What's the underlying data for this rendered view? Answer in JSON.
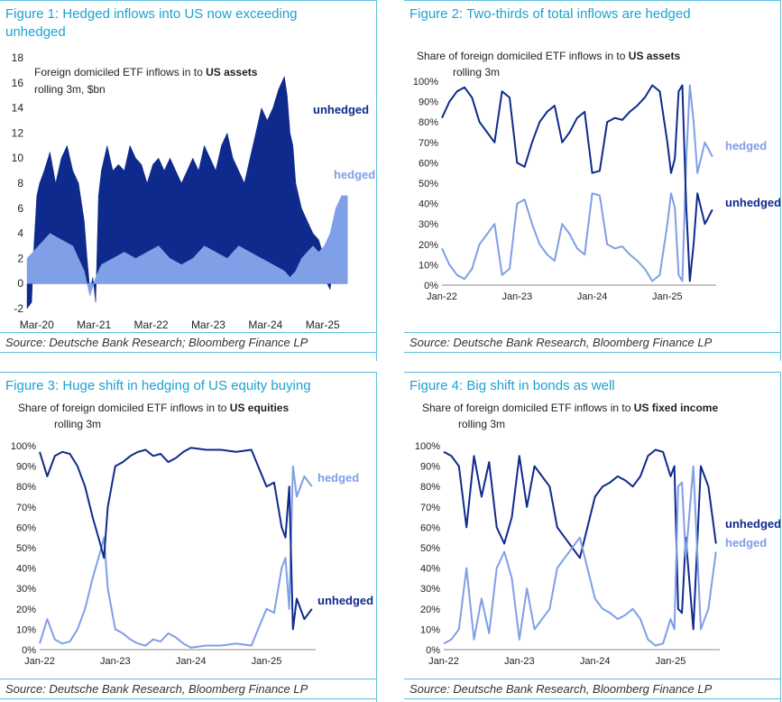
{
  "colors": {
    "title": "#1aa3d1",
    "unhedged": "#0e2a8c",
    "hedged": "#7f9fe6",
    "rule": "#5fc0e0"
  },
  "chart_data": [
    {
      "id": "fig1",
      "type": "area",
      "title": "Figure 1: Hedged inflows into US now exceeding unhedged",
      "annotation": {
        "line1_prefix": "Foreign domiciled ETF inflows in to ",
        "line1_bold": "US assets",
        "line2": "rolling 3m, $bn"
      },
      "source": "Source: Deutsche Bank Research; Bloomberg Finance LP",
      "ylim": [
        -2,
        18
      ],
      "yticks": [
        "18",
        "16",
        "14",
        "12",
        "10",
        "8",
        "6",
        "4",
        "2",
        "0",
        "-2"
      ],
      "xlim": [
        2020.0,
        2025.6
      ],
      "xticks": [
        {
          "label": "Mar-20",
          "x": 2020.17
        },
        {
          "label": "Mar-21",
          "x": 2021.17
        },
        {
          "label": "Mar-22",
          "x": 2022.17
        },
        {
          "label": "Mar-23",
          "x": 2023.17
        },
        {
          "label": "Mar-24",
          "x": 2024.17
        },
        {
          "label": "Mar-25",
          "x": 2025.17
        }
      ],
      "series": [
        {
          "name": "unhedged",
          "label": "unhedged",
          "x": [
            2020.0,
            2020.08,
            2020.12,
            2020.17,
            2020.22,
            2020.3,
            2020.4,
            2020.5,
            2020.6,
            2020.7,
            2020.8,
            2020.9,
            2021.0,
            2021.05,
            2021.1,
            2021.15,
            2021.2,
            2021.25,
            2021.3,
            2021.4,
            2021.5,
            2021.6,
            2021.7,
            2021.8,
            2021.9,
            2022.0,
            2022.1,
            2022.2,
            2022.3,
            2022.4,
            2022.5,
            2022.6,
            2022.7,
            2022.8,
            2022.9,
            2023.0,
            2023.1,
            2023.2,
            2023.3,
            2023.4,
            2023.5,
            2023.6,
            2023.7,
            2023.8,
            2023.9,
            2024.0,
            2024.1,
            2024.2,
            2024.3,
            2024.4,
            2024.5,
            2024.55,
            2024.6,
            2024.65,
            2024.7,
            2024.8,
            2024.9,
            2025.0,
            2025.1,
            2025.2,
            2025.25,
            2025.3,
            2025.4,
            2025.5,
            2025.6
          ],
          "y": [
            -2,
            -1.5,
            3,
            7,
            8,
            9,
            10.5,
            8,
            10,
            11,
            9,
            8,
            5,
            2,
            -0.5,
            0.5,
            -1.5,
            7,
            9,
            11,
            9,
            9.5,
            9,
            11,
            10,
            9.5,
            8,
            9.5,
            10,
            9,
            10,
            9,
            8,
            9,
            10,
            9,
            11,
            10,
            9,
            11,
            12,
            10,
            9,
            8,
            10,
            12,
            14,
            13,
            14,
            15.5,
            16.5,
            15,
            12,
            11,
            8,
            6,
            5,
            4,
            3.5,
            2,
            0,
            -0.5,
            3,
            5,
            7
          ]
        },
        {
          "name": "hedged",
          "label": "hedged",
          "x": [
            2020.0,
            2020.2,
            2020.4,
            2020.6,
            2020.8,
            2021.0,
            2021.1,
            2021.2,
            2021.3,
            2021.5,
            2021.7,
            2021.9,
            2022.1,
            2022.3,
            2022.5,
            2022.7,
            2022.9,
            2023.1,
            2023.3,
            2023.5,
            2023.7,
            2023.9,
            2024.1,
            2024.3,
            2024.5,
            2024.6,
            2024.7,
            2024.8,
            2024.9,
            2025.0,
            2025.1,
            2025.2,
            2025.3,
            2025.4,
            2025.5,
            2025.6
          ],
          "y": [
            2,
            3,
            4,
            3.5,
            3,
            1,
            -1,
            0.5,
            1.5,
            2,
            2.5,
            2,
            2.5,
            3,
            2,
            1.5,
            2,
            3,
            2.5,
            2,
            3,
            2.5,
            2,
            1.5,
            1,
            0.5,
            1,
            2,
            2.5,
            3,
            2.5,
            3,
            4,
            6,
            7,
            7
          ]
        }
      ]
    },
    {
      "id": "fig2",
      "type": "line",
      "title": "Figure 2: Two-thirds of total inflows are hedged",
      "annotation": {
        "line1_prefix": "Share of foreign domiciled ETF inflows in to ",
        "line1_bold": "US assets",
        "line2": "rolling 3m"
      },
      "source": "Source: Deutsche Bank Research, Bloomberg Finance LP",
      "ylim": [
        0,
        100
      ],
      "yticks": [
        "100%",
        "90%",
        "80%",
        "70%",
        "60%",
        "50%",
        "40%",
        "30%",
        "20%",
        "10%",
        "0%"
      ],
      "xlim": [
        2022.0,
        2025.65
      ],
      "xticks": [
        {
          "label": "Jan-22",
          "x": 2022.0
        },
        {
          "label": "Jan-23",
          "x": 2023.0
        },
        {
          "label": "Jan-24",
          "x": 2024.0
        },
        {
          "label": "Jan-25",
          "x": 2025.0
        }
      ],
      "series": [
        {
          "name": "hedged",
          "label": "hedged",
          "x": [
            2022.0,
            2022.1,
            2022.2,
            2022.3,
            2022.4,
            2022.5,
            2022.6,
            2022.7,
            2022.8,
            2022.9,
            2023.0,
            2023.1,
            2023.2,
            2023.3,
            2023.4,
            2023.5,
            2023.6,
            2023.7,
            2023.8,
            2023.9,
            2024.0,
            2024.1,
            2024.2,
            2024.3,
            2024.4,
            2024.5,
            2024.6,
            2024.7,
            2024.8,
            2024.9,
            2025.0,
            2025.05,
            2025.1,
            2025.15,
            2025.2,
            2025.25,
            2025.3,
            2025.35,
            2025.4,
            2025.5,
            2025.6
          ],
          "y": [
            18,
            10,
            5,
            3,
            8,
            20,
            25,
            30,
            5,
            8,
            40,
            42,
            30,
            20,
            15,
            12,
            30,
            25,
            18,
            15,
            45,
            44,
            20,
            18,
            19,
            15,
            12,
            8,
            2,
            5,
            30,
            45,
            38,
            5,
            2,
            60,
            98,
            80,
            55,
            70,
            63
          ]
        },
        {
          "name": "unhedged",
          "label": "unhedged",
          "x": [
            2022.0,
            2022.1,
            2022.2,
            2022.3,
            2022.4,
            2022.5,
            2022.6,
            2022.7,
            2022.8,
            2022.9,
            2023.0,
            2023.1,
            2023.2,
            2023.3,
            2023.4,
            2023.5,
            2023.6,
            2023.7,
            2023.8,
            2023.9,
            2024.0,
            2024.1,
            2024.2,
            2024.3,
            2024.4,
            2024.5,
            2024.6,
            2024.7,
            2024.8,
            2024.9,
            2025.0,
            2025.05,
            2025.1,
            2025.15,
            2025.2,
            2025.25,
            2025.3,
            2025.35,
            2025.4,
            2025.5,
            2025.6
          ],
          "y": [
            82,
            90,
            95,
            97,
            92,
            80,
            75,
            70,
            95,
            92,
            60,
            58,
            70,
            80,
            85,
            88,
            70,
            75,
            82,
            85,
            55,
            56,
            80,
            82,
            81,
            85,
            88,
            92,
            98,
            95,
            70,
            55,
            62,
            95,
            98,
            40,
            2,
            20,
            45,
            30,
            37
          ]
        }
      ]
    },
    {
      "id": "fig3",
      "type": "line",
      "title": "Figure 3: Huge shift in hedging of US equity buying",
      "annotation": {
        "line1_prefix": "Share of foreign domiciled ETF inflows in to ",
        "line1_bold": "US equities",
        "line2": "rolling 3m"
      },
      "source": "Source: Deutsche Bank Research, Bloomberg Finance LP",
      "ylim": [
        0,
        100
      ],
      "yticks": [
        "100%",
        "90%",
        "80%",
        "70%",
        "60%",
        "50%",
        "40%",
        "30%",
        "20%",
        "10%",
        "0%"
      ],
      "xlim": [
        2022.0,
        2025.65
      ],
      "xticks": [
        {
          "label": "Jan-22",
          "x": 2022.0
        },
        {
          "label": "Jan-23",
          "x": 2023.0
        },
        {
          "label": "Jan-24",
          "x": 2024.0
        },
        {
          "label": "Jan-25",
          "x": 2025.0
        }
      ],
      "series": [
        {
          "name": "hedged",
          "label": "hedged",
          "x": [
            2022.0,
            2022.1,
            2022.2,
            2022.3,
            2022.4,
            2022.5,
            2022.6,
            2022.7,
            2022.8,
            2022.85,
            2022.9,
            2023.0,
            2023.1,
            2023.2,
            2023.3,
            2023.4,
            2023.5,
            2023.6,
            2023.7,
            2023.8,
            2023.9,
            2024.0,
            2024.2,
            2024.4,
            2024.6,
            2024.8,
            2025.0,
            2025.1,
            2025.2,
            2025.25,
            2025.3,
            2025.35,
            2025.4,
            2025.5,
            2025.6
          ],
          "y": [
            3,
            15,
            5,
            3,
            4,
            10,
            20,
            35,
            48,
            55,
            30,
            10,
            8,
            5,
            3,
            2,
            5,
            4,
            8,
            6,
            3,
            1,
            2,
            2,
            3,
            2,
            20,
            18,
            40,
            45,
            20,
            90,
            75,
            85,
            80
          ]
        },
        {
          "name": "unhedged",
          "label": "unhedged",
          "x": [
            2022.0,
            2022.1,
            2022.2,
            2022.3,
            2022.4,
            2022.5,
            2022.6,
            2022.7,
            2022.8,
            2022.85,
            2022.9,
            2023.0,
            2023.1,
            2023.2,
            2023.3,
            2023.4,
            2023.5,
            2023.6,
            2023.7,
            2023.8,
            2023.9,
            2024.0,
            2024.2,
            2024.4,
            2024.6,
            2024.8,
            2025.0,
            2025.1,
            2025.2,
            2025.25,
            2025.3,
            2025.35,
            2025.4,
            2025.5,
            2025.6
          ],
          "y": [
            97,
            85,
            95,
            97,
            96,
            90,
            80,
            65,
            52,
            45,
            70,
            90,
            92,
            95,
            97,
            98,
            95,
            96,
            92,
            94,
            97,
            99,
            98,
            98,
            97,
            98,
            80,
            82,
            60,
            55,
            80,
            10,
            25,
            15,
            20
          ]
        }
      ]
    },
    {
      "id": "fig4",
      "type": "line",
      "title": "Figure 4: Big shift in bonds as well",
      "annotation": {
        "line1_prefix": "Share of foreign domiciled ETF inflows in to ",
        "line1_bold": "US fixed income",
        "line2": "rolling 3m"
      },
      "source": "Source: Deutsche Bank Research, Bloomberg Finance LP",
      "ylim": [
        0,
        100
      ],
      "yticks": [
        "100%",
        "90%",
        "80%",
        "70%",
        "60%",
        "50%",
        "40%",
        "30%",
        "20%",
        "10%",
        "0%"
      ],
      "xlim": [
        2022.0,
        2025.65
      ],
      "xticks": [
        {
          "label": "Jan-22",
          "x": 2022.0
        },
        {
          "label": "Jan-23",
          "x": 2023.0
        },
        {
          "label": "Jan-24",
          "x": 2024.0
        },
        {
          "label": "Jan-25",
          "x": 2025.0
        }
      ],
      "series": [
        {
          "name": "unhedged",
          "label": "unhedged",
          "x": [
            2022.0,
            2022.1,
            2022.2,
            2022.3,
            2022.4,
            2022.5,
            2022.6,
            2022.7,
            2022.8,
            2022.9,
            2023.0,
            2023.1,
            2023.2,
            2023.3,
            2023.4,
            2023.5,
            2023.6,
            2023.7,
            2023.8,
            2023.9,
            2024.0,
            2024.1,
            2024.2,
            2024.3,
            2024.4,
            2024.5,
            2024.6,
            2024.7,
            2024.8,
            2024.9,
            2025.0,
            2025.05,
            2025.1,
            2025.15,
            2025.2,
            2025.3,
            2025.4,
            2025.5,
            2025.6
          ],
          "y": [
            97,
            95,
            90,
            60,
            95,
            75,
            92,
            60,
            52,
            65,
            95,
            70,
            90,
            85,
            80,
            60,
            55,
            50,
            45,
            60,
            75,
            80,
            82,
            85,
            83,
            80,
            85,
            95,
            98,
            97,
            85,
            90,
            20,
            18,
            55,
            10,
            90,
            80,
            52
          ]
        },
        {
          "name": "hedged",
          "label": "hedged",
          "x": [
            2022.0,
            2022.1,
            2022.2,
            2022.3,
            2022.4,
            2022.5,
            2022.6,
            2022.7,
            2022.8,
            2022.9,
            2023.0,
            2023.1,
            2023.2,
            2023.3,
            2023.4,
            2023.5,
            2023.6,
            2023.7,
            2023.8,
            2023.9,
            2024.0,
            2024.1,
            2024.2,
            2024.3,
            2024.4,
            2024.5,
            2024.6,
            2024.7,
            2024.8,
            2024.9,
            2025.0,
            2025.05,
            2025.1,
            2025.15,
            2025.2,
            2025.3,
            2025.4,
            2025.5,
            2025.6
          ],
          "y": [
            3,
            5,
            10,
            40,
            5,
            25,
            8,
            40,
            48,
            35,
            5,
            30,
            10,
            15,
            20,
            40,
            45,
            50,
            55,
            40,
            25,
            20,
            18,
            15,
            17,
            20,
            15,
            5,
            2,
            3,
            15,
            10,
            80,
            82,
            45,
            90,
            10,
            20,
            48
          ]
        }
      ]
    }
  ]
}
